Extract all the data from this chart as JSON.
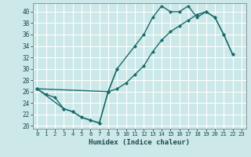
{
  "bg_color": "#cce8e8",
  "grid_color": "#ffffff",
  "line_color": "#1a6b6b",
  "xlabel": "Humidex (Indice chaleur)",
  "xlim": [
    -0.5,
    23.5
  ],
  "ylim": [
    19.5,
    41.5
  ],
  "yticks": [
    20,
    22,
    24,
    26,
    28,
    30,
    32,
    34,
    36,
    38,
    40
  ],
  "xticks": [
    0,
    1,
    2,
    3,
    4,
    5,
    6,
    7,
    8,
    9,
    10,
    11,
    12,
    13,
    14,
    15,
    16,
    17,
    18,
    19,
    20,
    21,
    22,
    23
  ],
  "line1_x": [
    0,
    3,
    4,
    5,
    6,
    7,
    8,
    9,
    11,
    12,
    13,
    14,
    15,
    16,
    17,
    18,
    19,
    20,
    21,
    22
  ],
  "line1_y": [
    26.5,
    23.0,
    22.5,
    21.5,
    21.0,
    20.5,
    26.0,
    30.0,
    34.0,
    36.0,
    39.0,
    41.0,
    40.0,
    40.0,
    41.0,
    39.0,
    40.0,
    39.0,
    36.0,
    32.5
  ],
  "line2_x": [
    0,
    8,
    9,
    10,
    11,
    12,
    13,
    14,
    15,
    16,
    17,
    18,
    19,
    20,
    21,
    22
  ],
  "line2_y": [
    26.5,
    26.0,
    26.5,
    27.5,
    29.0,
    30.5,
    33.0,
    35.0,
    36.5,
    37.5,
    38.5,
    39.5,
    40.0,
    39.0,
    36.0,
    32.5
  ],
  "line3_x": [
    0,
    1,
    2,
    3,
    4,
    5,
    6,
    7,
    8,
    9
  ],
  "line3_y": [
    26.5,
    25.5,
    25.0,
    23.0,
    22.5,
    21.5,
    21.0,
    20.5,
    26.0,
    30.0
  ],
  "markersize": 2.5,
  "linewidth": 1.0
}
